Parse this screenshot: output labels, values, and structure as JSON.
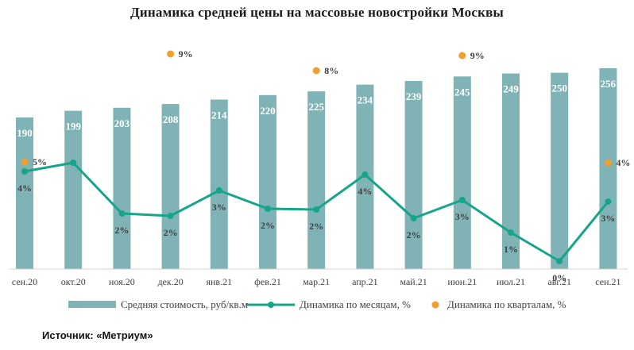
{
  "title": "Динамика средней цены на массовые новостройки Москвы",
  "source": "Источник: «Метриум»",
  "colors": {
    "bar": "#7fb3b6",
    "monthly": "#17a589",
    "quarterly": "#f0a030"
  },
  "chart_data": {
    "type": "bar",
    "title": "Динамика средней цены на массовые новостройки Москвы",
    "categories": [
      "сен.20",
      "окт.20",
      "ноя.20",
      "дек.20",
      "янв.21",
      "фев.21",
      "мар.21",
      "апр.21",
      "май.21",
      "июн.21",
      "июл.21",
      "авг.21",
      "сен.21"
    ],
    "series": [
      {
        "name": "Средняя стоимость, руб/кв.м",
        "type": "bar",
        "axis": "left",
        "values": [
          190,
          199,
          203,
          208,
          214,
          220,
          225,
          234,
          239,
          245,
          249,
          250,
          256
        ],
        "labels": [
          "190",
          "199",
          "203",
          "208",
          "214",
          "220",
          "225",
          "234",
          "239",
          "245",
          "249",
          "250",
          "256"
        ]
      },
      {
        "name": "Динамика по месяцам, %",
        "type": "line",
        "axis": "right",
        "values": [
          4,
          5,
          2,
          2,
          3,
          2,
          2,
          4,
          2,
          3,
          1,
          0,
          3
        ],
        "labels": [
          "4%",
          "",
          "2%",
          "2%",
          "3%",
          "2%",
          "2%",
          "4%",
          "2%",
          "3%",
          "1%",
          "0%",
          "3%"
        ]
      },
      {
        "name": "Динамика по кварталам, %",
        "type": "scatter",
        "axis": "right",
        "values": [
          5,
          null,
          null,
          9,
          null,
          null,
          8,
          null,
          null,
          9,
          null,
          null,
          4
        ],
        "labels": [
          "5%",
          "",
          "",
          "9%",
          "",
          "",
          "8%",
          "",
          "",
          "9%",
          "",
          "",
          "4%"
        ]
      }
    ],
    "legend_position": "bottom",
    "grid": false
  }
}
